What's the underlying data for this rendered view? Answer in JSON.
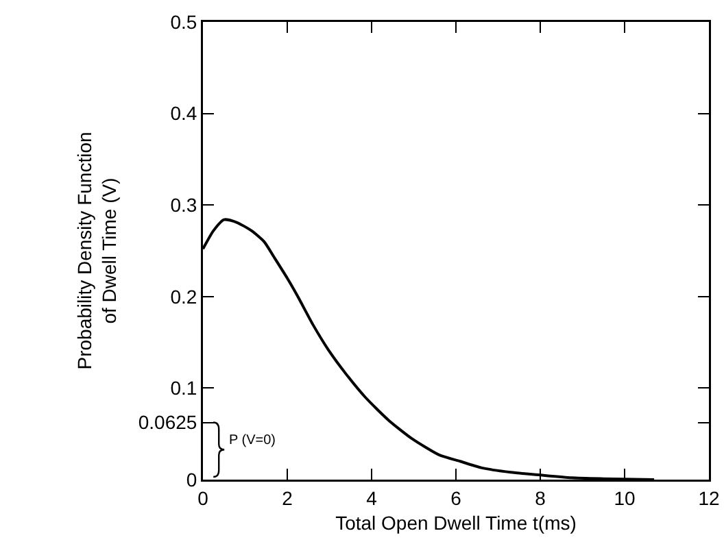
{
  "chart_data": {
    "type": "line",
    "xlabel": "Total Open Dwell Time t(ms)",
    "ylabel": "Probability Density Function\nof Dwell Time (V)",
    "x": [
      0,
      0.25,
      0.5,
      0.8,
      1.15,
      1.45,
      1.7,
      2.0,
      2.25,
      2.6,
      3.0,
      3.4,
      3.85,
      4.4,
      4.95,
      5.6,
      6.1,
      6.6,
      7.3,
      8.0,
      8.75,
      9.5,
      10.7
    ],
    "series": [
      {
        "color": "#000000",
        "values": [
          0.252,
          0.272,
          0.284,
          0.281,
          0.272,
          0.26,
          0.242,
          0.22,
          0.2,
          0.17,
          0.14,
          0.115,
          0.09,
          0.065,
          0.045,
          0.027,
          0.02,
          0.013,
          0.008,
          0.005,
          0.002,
          0.001,
          0
        ]
      }
    ],
    "xlim": [
      0,
      12
    ],
    "xticks": [
      0,
      2,
      4,
      6,
      8,
      10,
      12
    ],
    "ylim": [
      0,
      0.5
    ],
    "yticks": [
      0,
      0.0625,
      0.1,
      0.2,
      0.3,
      0.4,
      0.5
    ],
    "annotations": [
      "P (V=0)"
    ],
    "grid": false,
    "marker": "none",
    "line_style": "solid"
  }
}
